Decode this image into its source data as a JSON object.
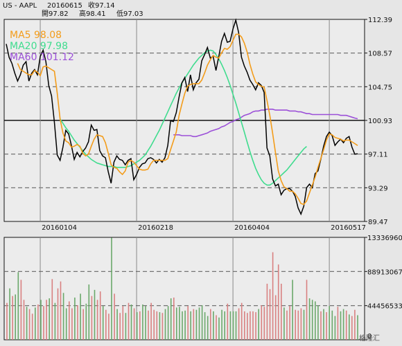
{
  "header": {
    "symbol": "US - AAPL",
    "date": "20160615",
    "close": "收97.14",
    "open": "開97.82",
    "high": "高98.41",
    "low": "低97.03"
  },
  "legend": {
    "ma5": "MA5 98.08",
    "ma20": "MA20 97.98",
    "ma60": "MA60 101.12"
  },
  "watermark": "格隆汇",
  "colors": {
    "price": "#000000",
    "ma5": "#f39c1a",
    "ma20": "#3fdc8e",
    "ma60": "#9b4fd8",
    "volume_up": "#6aa86a",
    "volume_down": "#d98080",
    "background": "#e6e6e6"
  },
  "chart_data": [
    {
      "type": "line",
      "title": "",
      "x_tick_labels": [
        "20160104",
        "20160218",
        "20160404",
        "20160517"
      ],
      "y_tick_labels": [
        "112.39",
        "108.57",
        "104.75",
        "100.93",
        "97.11",
        "93.29",
        "89.47"
      ],
      "ylim": [
        89.47,
        112.39
      ],
      "reference_line": 100.93,
      "grid": true,
      "legend_placement": "top-left",
      "price": [
        109.6,
        108.1,
        107.4,
        106.3,
        105.4,
        106.1,
        107.2,
        107.6,
        105.4,
        106.3,
        106.7,
        106.1,
        108.2,
        108.9,
        107.6,
        104.9,
        103.7,
        100.7,
        97.0,
        96.4,
        97.9,
        99.8,
        99.4,
        98.1,
        96.5,
        97.3,
        96.8,
        97.4,
        97.8,
        98.5,
        100.4,
        99.8,
        99.9,
        97.5,
        96.9,
        96.7,
        95.1,
        93.8,
        96.2,
        96.9,
        96.5,
        96.4,
        95.9,
        96.4,
        96.6,
        94.2,
        94.8,
        95.6,
        96.0,
        96.1,
        96.6,
        96.7,
        96.5,
        96.1,
        96.5,
        96.2,
        96.7,
        98.1,
        100.9,
        100.8,
        101.8,
        103.6,
        105.2,
        105.8,
        104.2,
        106.1,
        104.4,
        105.2,
        105.6,
        107.7,
        108.4,
        109.2,
        108.0,
        108.2,
        106.6,
        108.2,
        109.9,
        110.8,
        109.8,
        109.9,
        111.3,
        112.3,
        110.9,
        108.1,
        107.1,
        106.4,
        105.5,
        105.0,
        104.4,
        105.2,
        104.9,
        104.1,
        97.8,
        96.9,
        94.3,
        93.5,
        93.7,
        92.5,
        93.0,
        93.2,
        93.2,
        92.9,
        92.3,
        91.0,
        90.3,
        91.2,
        93.3,
        93.7,
        93.3,
        94.9,
        95.2,
        96.5,
        98.0,
        99.1,
        99.6,
        99.2,
        98.1,
        98.5,
        98.8,
        98.4,
        98.9,
        99.1,
        97.9,
        97.1,
        97.14
      ],
      "ma5": [
        null,
        null,
        null,
        null,
        107.4,
        106.7,
        106.5,
        106.3,
        106.1,
        106.1,
        106.6,
        106.4,
        106.0,
        107.0,
        107.1,
        106.9,
        106.7,
        106.5,
        104.0,
        101.1,
        99.5,
        98.6,
        98.4,
        97.9,
        98.0,
        98.2,
        98.0,
        97.2,
        96.9,
        97.1,
        98.0,
        98.8,
        99.3,
        99.2,
        99.1,
        98.4,
        97.2,
        95.9,
        95.6,
        95.5,
        95.1,
        94.8,
        95.2,
        96.2,
        96.4,
        96.2,
        95.8,
        95.4,
        95.3,
        95.3,
        95.4,
        96.0,
        96.4,
        96.4,
        96.4,
        96.4,
        96.4,
        96.6,
        97.6,
        98.6,
        99.6,
        101.5,
        102.8,
        104.0,
        104.8,
        105.0,
        105.1,
        105.1,
        105.1,
        105.5,
        106.3,
        107.2,
        107.8,
        108.3,
        108.1,
        108.0,
        108.6,
        109.1,
        109.0,
        109.3,
        110.0,
        110.7,
        110.7,
        110.4,
        109.7,
        108.7,
        107.3,
        106.2,
        105.3,
        105.0,
        104.8,
        104.7,
        103.2,
        101.5,
        99.5,
        97.3,
        95.2,
        94.1,
        93.4,
        93.2,
        92.9,
        92.9,
        92.6,
        92.1,
        91.5,
        91.4,
        91.8,
        92.7,
        93.6,
        94.5,
        95.6,
        96.6,
        97.6,
        98.7,
        99.4,
        99.3,
        99.0,
        98.9,
        98.8,
        98.6,
        98.7,
        98.7,
        98.5,
        98.3,
        98.08
      ],
      "ma20_start_index": 19,
      "ma20": [
        101.1,
        100.6,
        100.1,
        99.7,
        99.2,
        98.7,
        98.3,
        97.9,
        97.5,
        97.1,
        96.8,
        96.5,
        96.3,
        96.1,
        96.0,
        95.9,
        95.8,
        95.7,
        95.7,
        95.7,
        95.6,
        95.6,
        95.6,
        95.6,
        95.7,
        95.8,
        96.0,
        96.2,
        96.4,
        96.7,
        97.0,
        97.5,
        98.0,
        98.6,
        99.2,
        99.8,
        100.5,
        101.2,
        101.9,
        102.6,
        103.3,
        104.0,
        104.6,
        105.2,
        105.7,
        106.2,
        106.7,
        107.2,
        107.6,
        108.0,
        108.3,
        108.6,
        108.8,
        108.9,
        108.8,
        108.4,
        107.9,
        107.3,
        106.6,
        105.8,
        104.9,
        103.9,
        102.9,
        101.8,
        100.7,
        99.6,
        98.5,
        97.4,
        96.4,
        95.5,
        94.8,
        94.2,
        93.8,
        93.6,
        93.6,
        93.8,
        94.1,
        94.4,
        94.7,
        95.0,
        95.3,
        95.7,
        96.1,
        96.5,
        96.9,
        97.3,
        97.7,
        97.98
      ],
      "ma60_start_index": 59,
      "ma60": [
        99.3,
        99.3,
        99.3,
        99.2,
        99.2,
        99.2,
        99.2,
        99.1,
        99.1,
        99.2,
        99.3,
        99.4,
        99.5,
        99.7,
        99.8,
        99.9,
        100.0,
        100.2,
        100.3,
        100.5,
        100.7,
        100.8,
        101.0,
        101.1,
        101.3,
        101.5,
        101.6,
        101.7,
        101.9,
        102.0,
        102.0,
        102.1,
        102.1,
        102.2,
        102.2,
        102.2,
        102.1,
        102.1,
        102.1,
        102.1,
        102.1,
        102.0,
        102.0,
        102.0,
        101.9,
        101.9,
        101.8,
        101.7,
        101.7,
        101.6,
        101.6,
        101.6,
        101.6,
        101.6,
        101.6,
        101.6,
        101.6,
        101.6,
        101.6,
        101.5,
        101.5,
        101.5,
        101.4,
        101.3,
        101.2,
        101.12
      ]
    },
    {
      "type": "bar",
      "title": "",
      "y_tick_labels": [
        "133369600",
        "88913067",
        "44456533",
        "0"
      ],
      "ylim": [
        0,
        133369600
      ],
      "grid": true,
      "values_millions": [
        48,
        67,
        57,
        59,
        88,
        78,
        52,
        43,
        40,
        34,
        42,
        46,
        52,
        44,
        52,
        54,
        79,
        48,
        67,
        76,
        61,
        41,
        50,
        41,
        55,
        45,
        60,
        40,
        47,
        72,
        57,
        65,
        52,
        63,
        44,
        39,
        34,
        133,
        60,
        40,
        35,
        44,
        35,
        48,
        46,
        41,
        36,
        37,
        46,
        44,
        38,
        48,
        39,
        37,
        36,
        35,
        40,
        44,
        54,
        55,
        42,
        43,
        37,
        38,
        44,
        37,
        40,
        39,
        42,
        45,
        36,
        31,
        40,
        37,
        32,
        29,
        39,
        37,
        47,
        37,
        37,
        37,
        41,
        48,
        37,
        35,
        37,
        37,
        36,
        40,
        45,
        43,
        73,
        66,
        114,
        58,
        98,
        73,
        42,
        38,
        44,
        78,
        39,
        38,
        41,
        39,
        78,
        54,
        52,
        50,
        45,
        37,
        40,
        36,
        44,
        38,
        31,
        43,
        37,
        40,
        38,
        33,
        31,
        39,
        32
      ],
      "up": [
        false,
        true,
        false,
        true,
        true,
        false,
        false,
        true,
        false,
        false,
        true,
        false,
        true,
        false,
        false,
        true,
        false,
        true,
        false,
        false,
        true,
        true,
        false,
        false,
        true,
        false,
        true,
        false,
        true,
        true,
        false,
        true,
        false,
        false,
        true,
        false,
        false,
        true,
        false,
        true,
        false,
        false,
        true,
        false,
        true,
        false,
        true,
        false,
        true,
        true,
        false,
        false,
        false,
        false,
        true,
        false,
        true,
        true,
        true,
        false,
        true,
        true,
        true,
        true,
        false,
        true,
        false,
        true,
        true,
        true,
        true,
        true,
        false,
        true,
        false,
        true,
        true,
        true,
        false,
        true,
        true,
        true,
        false,
        false,
        false,
        false,
        false,
        false,
        false,
        true,
        false,
        false,
        false,
        false,
        false,
        false,
        false,
        false,
        true,
        false,
        false,
        true,
        false,
        false,
        false,
        true,
        false,
        true,
        true,
        true,
        true,
        false,
        true,
        false,
        true,
        true,
        true,
        false,
        true,
        true,
        false,
        true,
        false,
        false,
        true
      ]
    }
  ]
}
